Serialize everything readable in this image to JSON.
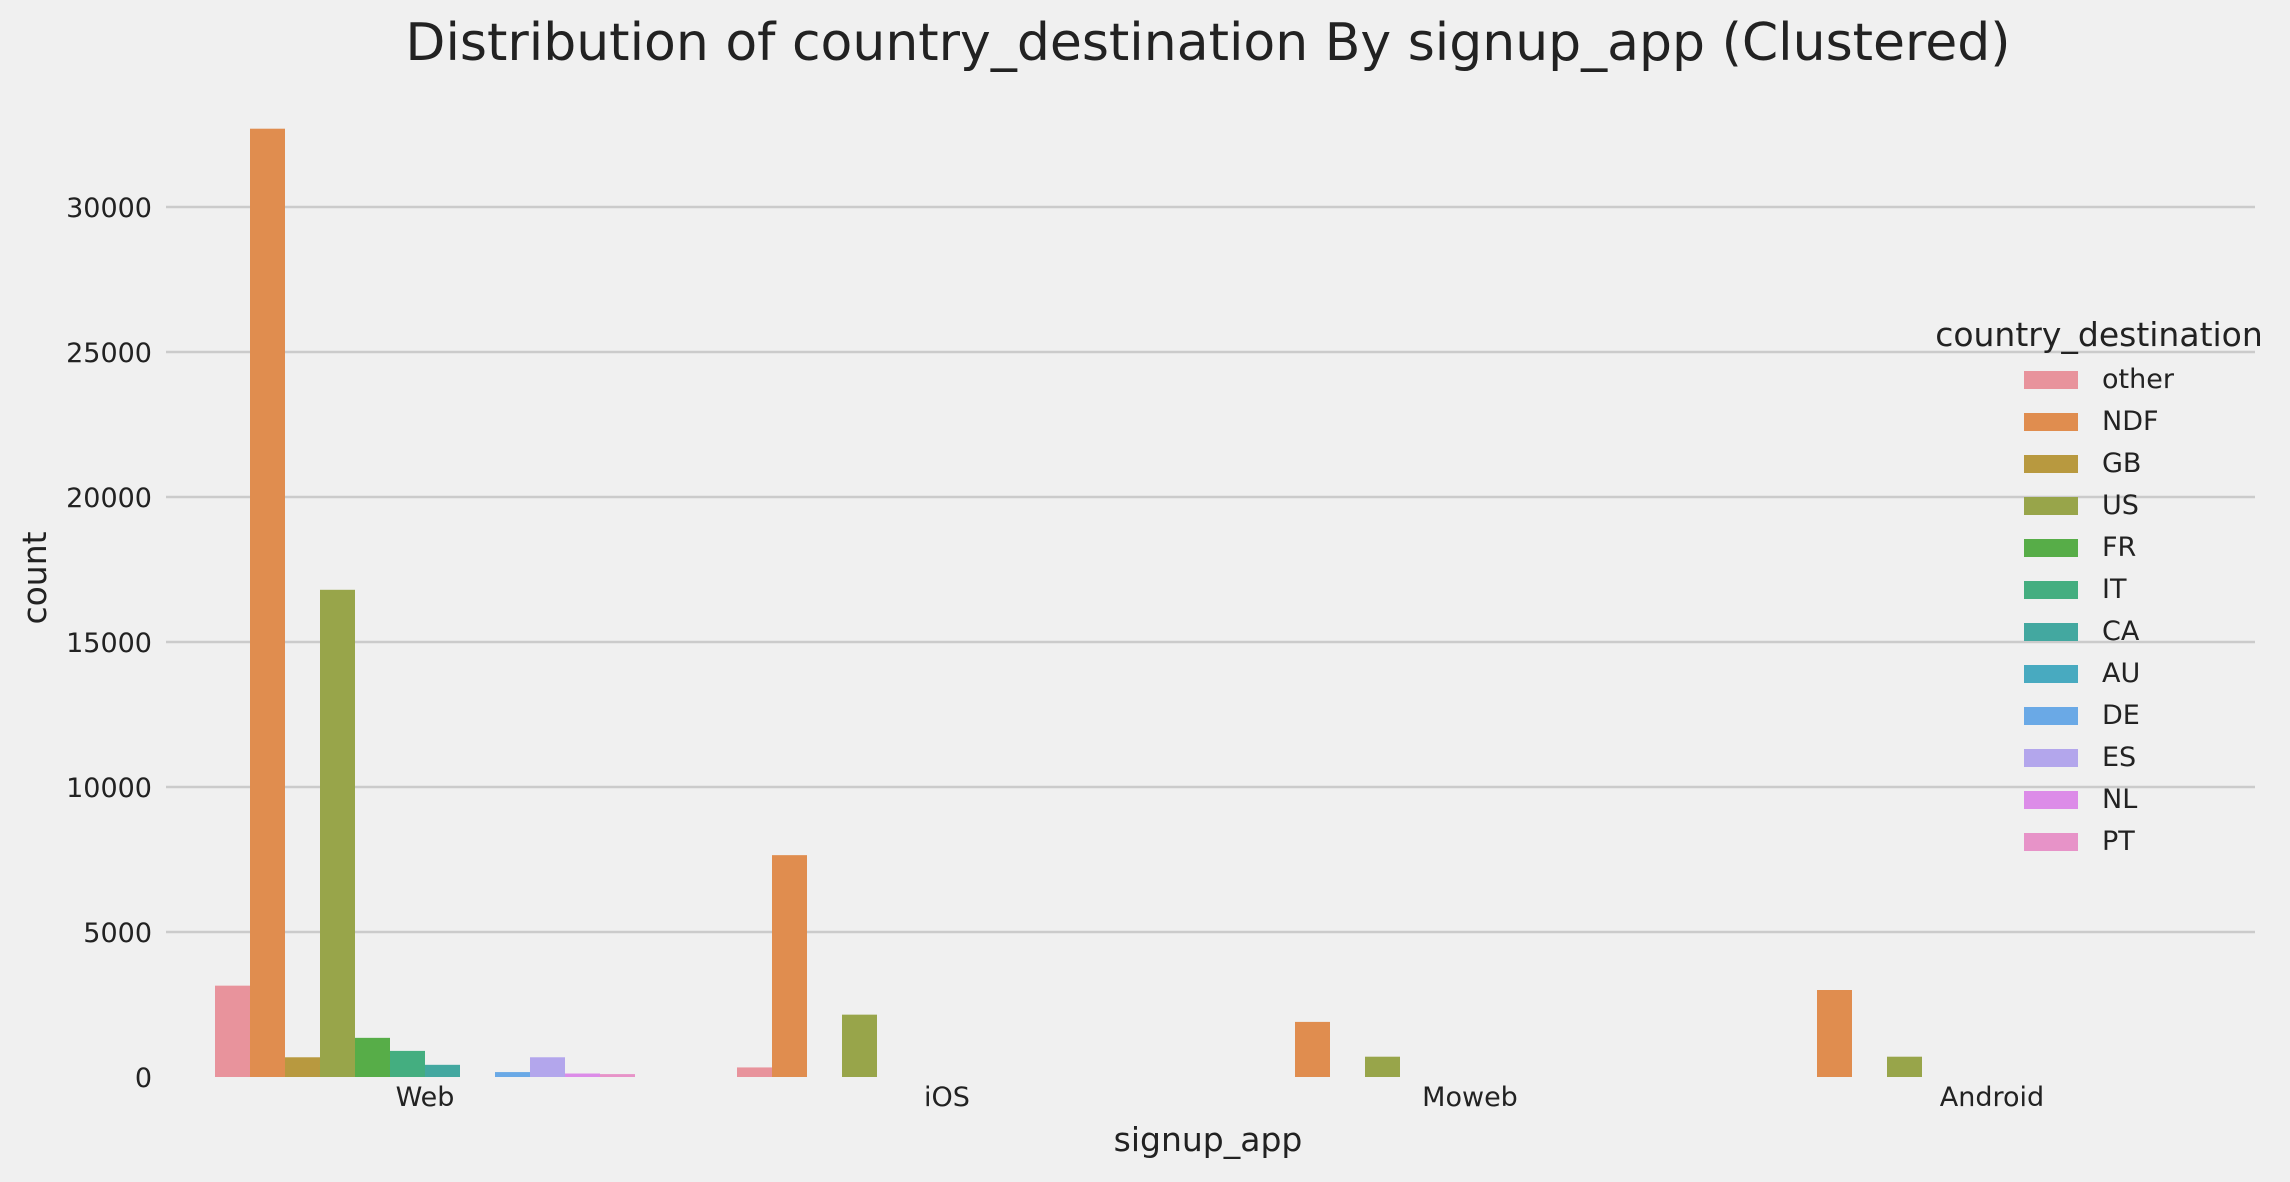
{
  "chart_data": {
    "type": "bar",
    "title": "Distribution of country_destination By signup_app (Clustered)",
    "xlabel": "signup_app",
    "ylabel": "count",
    "categories": [
      "Web",
      "iOS",
      "Moweb",
      "Android"
    ],
    "ylim": [
      0,
      33000
    ],
    "yticks": [
      0,
      5000,
      10000,
      15000,
      20000,
      25000,
      30000
    ],
    "grid": true,
    "legend_title": "country_destination",
    "legend_position": "right",
    "series": [
      {
        "name": "other",
        "color": "#e8939c",
        "values": [
          3150,
          330,
          0,
          0
        ]
      },
      {
        "name": "NDF",
        "color": "#e08d4f",
        "values": [
          32700,
          7650,
          1900,
          3000
        ]
      },
      {
        "name": "GB",
        "color": "#b8993f",
        "values": [
          680,
          0,
          0,
          0
        ]
      },
      {
        "name": "US",
        "color": "#98a54a",
        "values": [
          16800,
          2150,
          700,
          700
        ]
      },
      {
        "name": "FR",
        "color": "#57ad48",
        "values": [
          1350,
          0,
          0,
          0
        ]
      },
      {
        "name": "IT",
        "color": "#44ae80",
        "values": [
          900,
          0,
          0,
          0
        ]
      },
      {
        "name": "CA",
        "color": "#43a8a0",
        "values": [
          420,
          0,
          0,
          0
        ]
      },
      {
        "name": "AU",
        "color": "#48aac0",
        "values": [
          0,
          0,
          0,
          0
        ]
      },
      {
        "name": "DE",
        "color": "#6aa9e6",
        "values": [
          170,
          0,
          0,
          0
        ]
      },
      {
        "name": "ES",
        "color": "#b3a6ec",
        "values": [
          680,
          0,
          0,
          0
        ]
      },
      {
        "name": "NL",
        "color": "#dc8ce8",
        "values": [
          120,
          0,
          0,
          0
        ]
      },
      {
        "name": "PT",
        "color": "#e793c8",
        "values": [
          100,
          0,
          0,
          0
        ]
      }
    ]
  }
}
